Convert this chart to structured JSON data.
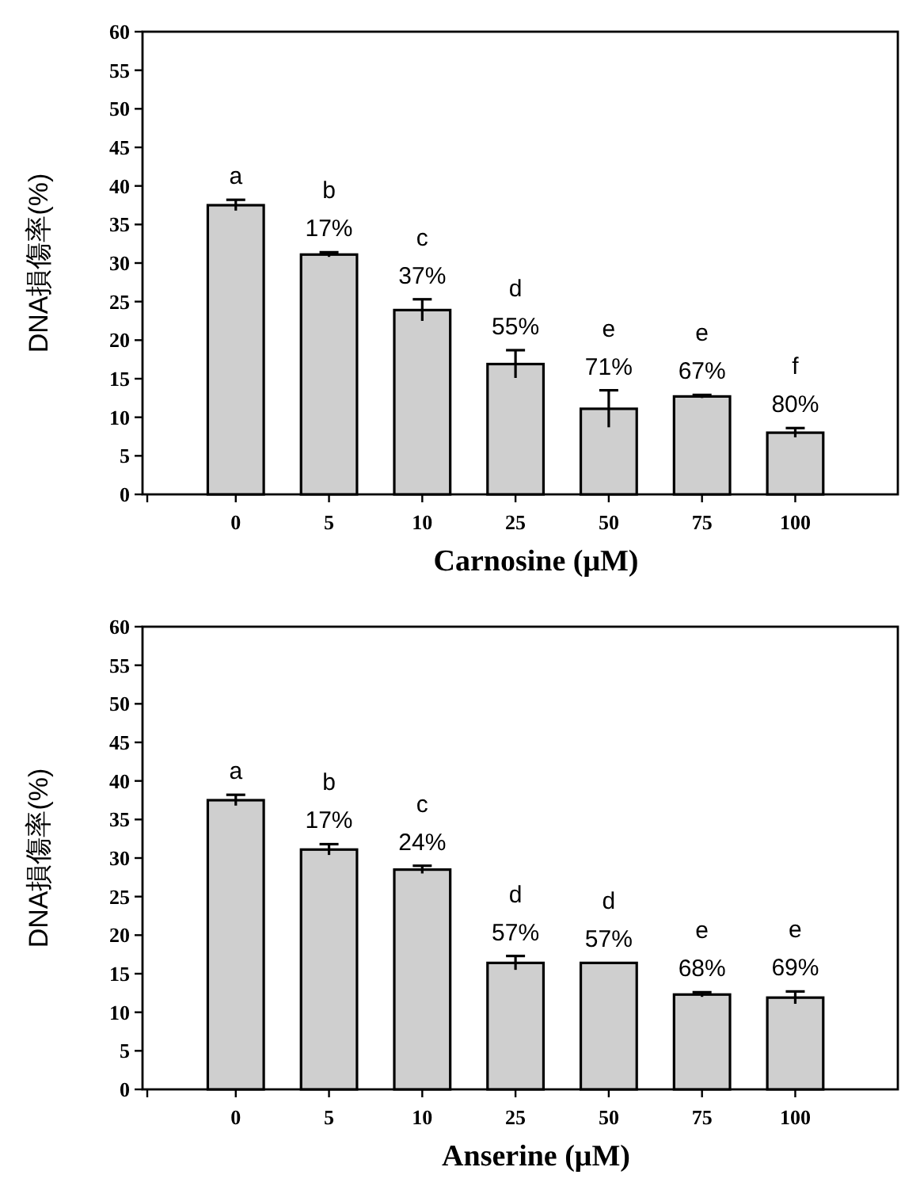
{
  "chart_data": [
    {
      "type": "bar",
      "categories": [
        "0",
        "5",
        "10",
        "25",
        "50",
        "75",
        "100"
      ],
      "values": [
        37.5,
        31.1,
        23.9,
        16.9,
        11.1,
        12.7,
        8.0
      ],
      "errors": [
        0.7,
        0.3,
        1.4,
        1.8,
        2.4,
        0.2,
        0.6
      ],
      "color": "#cfcfcf",
      "ylim": [
        0,
        60
      ],
      "yticks": [
        0,
        5,
        10,
        15,
        20,
        25,
        30,
        35,
        40,
        45,
        50,
        55,
        60
      ],
      "xlabel": "Carnosine (μM)",
      "ylabel": "DNA損傷率(%)",
      "value_labels": [
        "a",
        "b\n17%",
        "c\n37%",
        "d\n55%",
        "e\n71%",
        "e\n67%",
        "f\n80%"
      ]
    },
    {
      "type": "bar",
      "categories": [
        "0",
        "5",
        "10",
        "25",
        "50",
        "75",
        "100"
      ],
      "values": [
        37.5,
        31.1,
        28.5,
        16.4,
        16.4,
        12.3,
        11.9
      ],
      "errors": [
        0.7,
        0.7,
        0.5,
        0.9,
        null,
        0.3,
        0.8
      ],
      "color": "#cfcfcf",
      "ylim": [
        0,
        60
      ],
      "yticks": [
        0,
        5,
        10,
        15,
        20,
        25,
        30,
        35,
        40,
        45,
        50,
        55,
        60
      ],
      "xlabel": "Anserine (μM)",
      "ylabel": "DNA損傷率(%)",
      "value_labels": [
        "a",
        "b\n17%",
        "c\n24%",
        "d\n57%",
        "d\n57%",
        "e\n68%",
        "e\n69%"
      ]
    }
  ]
}
